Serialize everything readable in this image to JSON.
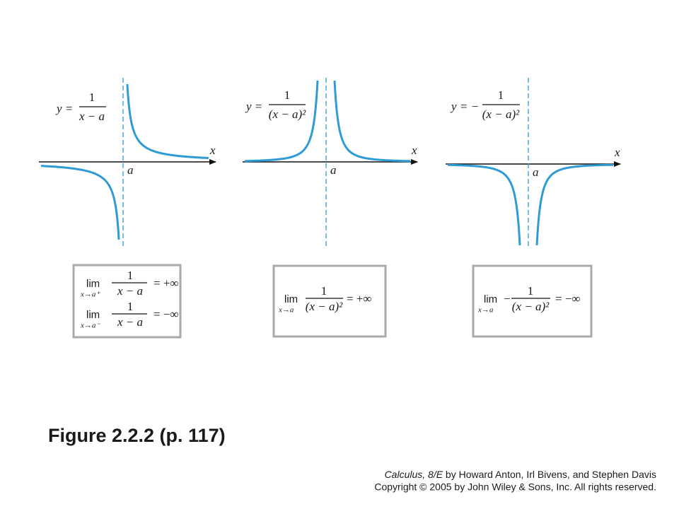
{
  "figure": {
    "panels": [
      {
        "graph": {
          "lhs": "y =",
          "numerator": "1",
          "denominator": "x − a",
          "x_label": "x",
          "a_label": "a"
        },
        "limits": [
          {
            "lim": "lim",
            "approach": "x→a⁺",
            "numerator": "1",
            "denominator": "x − a",
            "result": "= +∞"
          },
          {
            "lim": "lim",
            "approach": "x→a⁻",
            "numerator": "1",
            "denominator": "x − a",
            "result": "= −∞"
          }
        ]
      },
      {
        "graph": {
          "lhs": "y =",
          "numerator": "1",
          "denominator": "(x − a)²",
          "x_label": "x",
          "a_label": "a"
        },
        "limits": [
          {
            "lim": "lim",
            "approach": "x→a",
            "numerator": "1",
            "denominator": "(x − a)²",
            "result": "= +∞"
          }
        ]
      },
      {
        "graph": {
          "lhs": "y = −",
          "numerator": "1",
          "denominator": "(x − a)²",
          "x_label": "x",
          "a_label": "a"
        },
        "limits": [
          {
            "lim": "lim",
            "approach": "x→a",
            "sign": "−",
            "numerator": "1",
            "denominator": "(x − a)²",
            "result": "= −∞"
          }
        ]
      }
    ]
  },
  "caption": "Figure 2.2.2  (p. 117)",
  "credits": {
    "book": "Calculus, 8/E",
    "authors": " by Howard Anton, Irl Bivens, and Stephen Davis",
    "copyright": "Copyright © 2005 by John Wiley & Sons, Inc.  All rights reserved."
  }
}
